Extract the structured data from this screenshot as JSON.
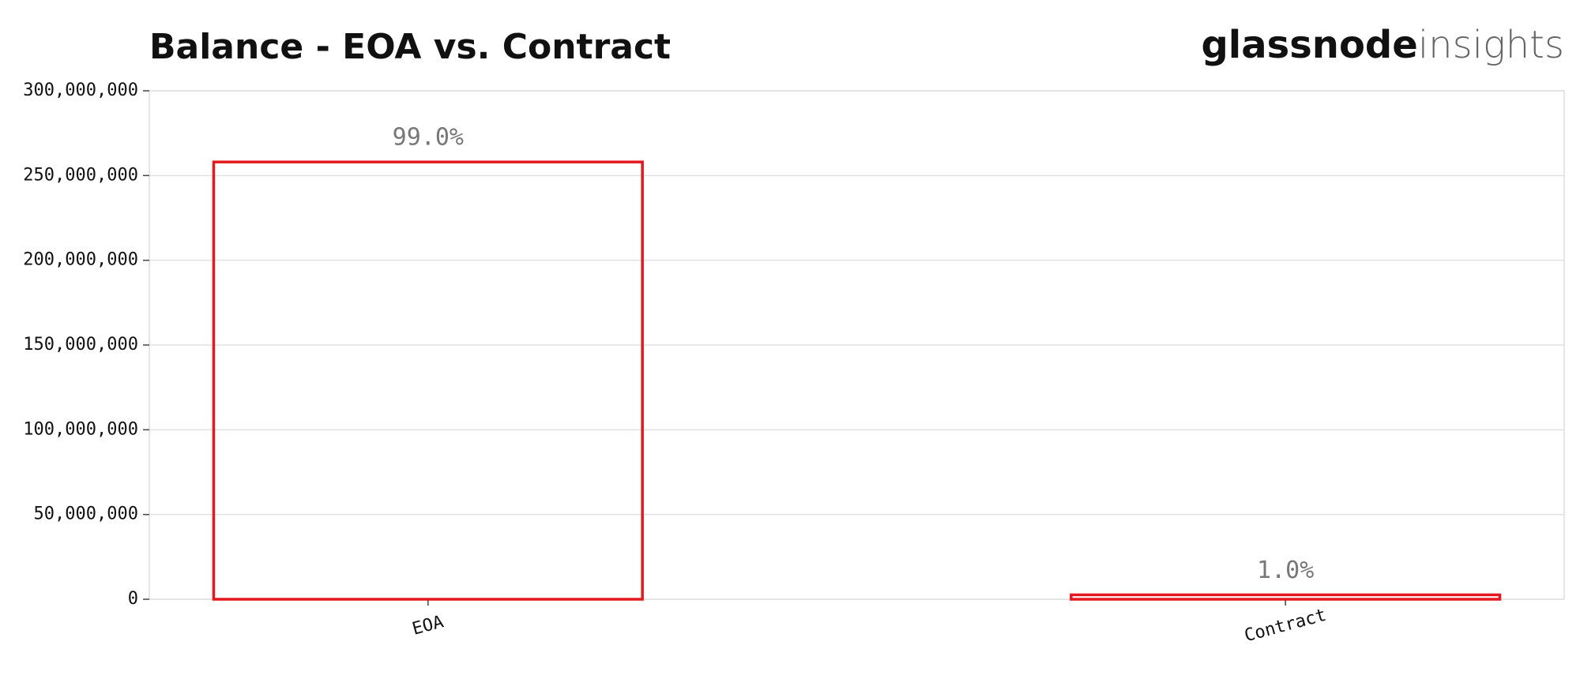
{
  "chart_data": {
    "type": "bar",
    "title": "Balance - EOA vs. Contract",
    "brand": {
      "name": "glassnode",
      "product": "insights"
    },
    "categories": [
      "EOA",
      "Contract"
    ],
    "values": [
      258000000,
      2600000
    ],
    "share_labels": [
      "99.0%",
      "1.0%"
    ],
    "color": "#e3191f",
    "ylim": [
      0,
      300000000
    ],
    "yticks": [
      {
        "value": 0,
        "label": "0"
      },
      {
        "value": 50000000,
        "label": "50,000,000"
      },
      {
        "value": 100000000,
        "label": "100,000,000"
      },
      {
        "value": 150000000,
        "label": "150,000,000"
      },
      {
        "value": 200000000,
        "label": "200,000,000"
      },
      {
        "value": 250000000,
        "label": "250,000,000"
      },
      {
        "value": 300000000,
        "label": "300,000,000"
      }
    ],
    "grid": true
  }
}
